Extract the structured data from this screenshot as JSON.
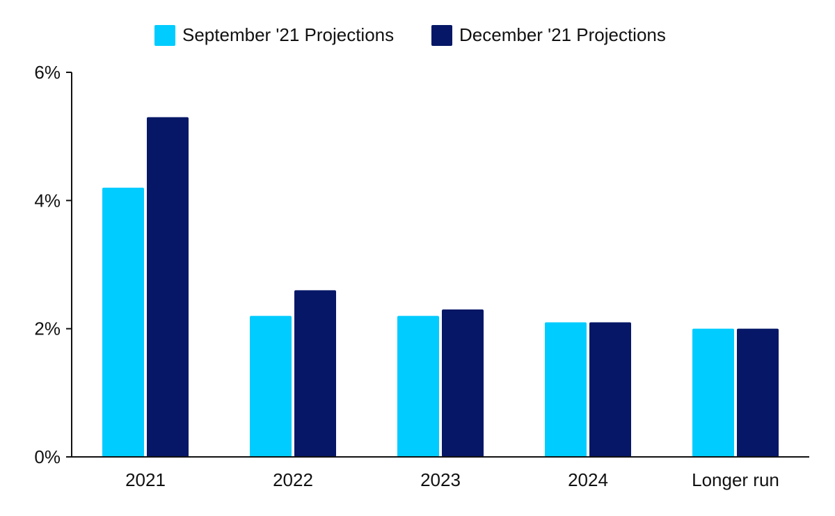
{
  "colors": {
    "series_1": "#00CCFF",
    "series_2": "#051766",
    "axis": "#111111",
    "background": "#ffffff"
  },
  "chart_data": {
    "type": "bar",
    "title": "",
    "xlabel": "",
    "ylabel": "",
    "categories": [
      "2021",
      "2022",
      "2023",
      "2024",
      "Longer run"
    ],
    "series": [
      {
        "name": "September '21 Projections",
        "values": [
          4.2,
          2.2,
          2.2,
          2.1,
          2.0
        ]
      },
      {
        "name": "December '21 Projections",
        "values": [
          5.3,
          2.6,
          2.3,
          2.1,
          2.0
        ]
      }
    ],
    "ylim": [
      0,
      6
    ],
    "yticks": [
      0,
      2,
      4,
      6
    ],
    "ytick_labels": [
      "0%",
      "2%",
      "4%",
      "6%"
    ],
    "grid": false,
    "legend_position": "top-center"
  }
}
